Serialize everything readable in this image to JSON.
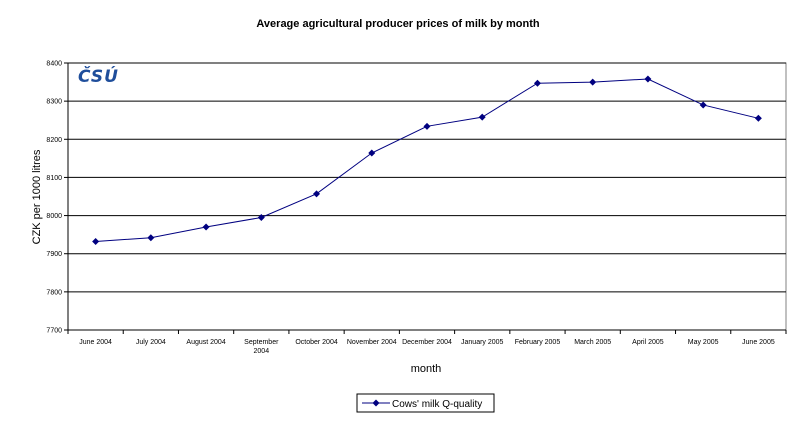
{
  "chart_data": {
    "type": "line",
    "title": "Average agricultural producer prices of milk by month",
    "xlabel": "month",
    "ylabel": "CZK per 1000 litres",
    "ylim": [
      7700,
      8400
    ],
    "yticks": [
      7700,
      7800,
      7900,
      8000,
      8100,
      8200,
      8300,
      8400
    ],
    "grid": "horizontal",
    "legend_position": "bottom-center",
    "categories": [
      [
        "June 2004"
      ],
      [
        "July 2004"
      ],
      [
        "August 2004"
      ],
      [
        "September",
        "2004"
      ],
      [
        "October 2004"
      ],
      [
        "November 2004"
      ],
      [
        "December 2004"
      ],
      [
        "January 2005"
      ],
      [
        "February 2005"
      ],
      [
        "March 2005"
      ],
      [
        "April 2005"
      ],
      [
        "May 2005"
      ],
      [
        "June 2005"
      ]
    ],
    "series": [
      {
        "name": "Cows' milk Q-quality",
        "values": [
          7932,
          7942,
          7970,
          7995,
          8057,
          8164,
          8234,
          8258,
          8347,
          8350,
          8358,
          8290,
          8255
        ]
      }
    ],
    "colors": {
      "series": "#000080",
      "grid": "#000000",
      "logo": "#1f4e9b"
    }
  },
  "logo": {
    "text": "ČSÚ"
  }
}
